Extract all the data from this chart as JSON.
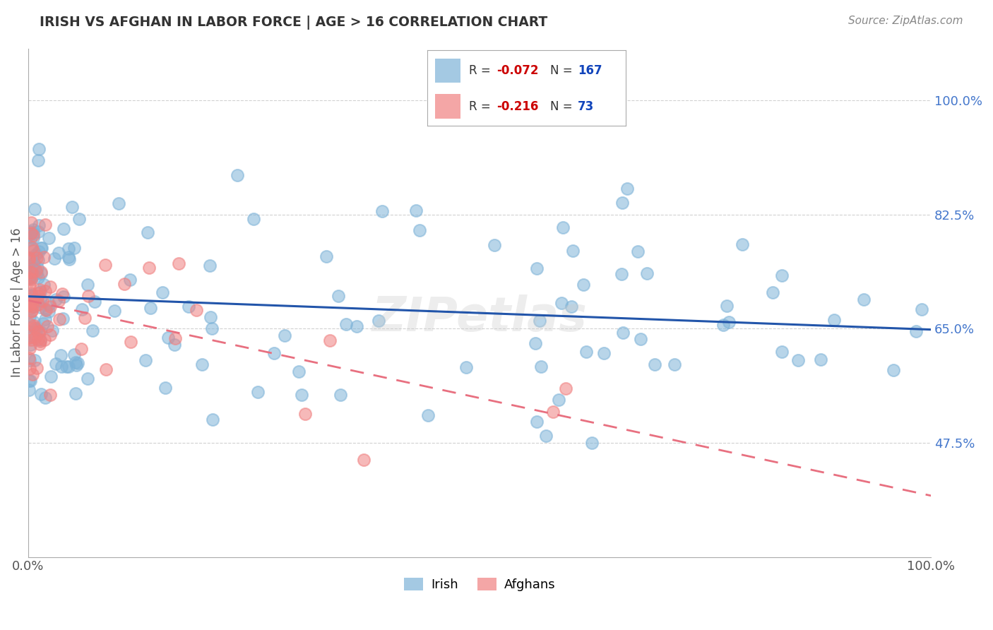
{
  "title": "IRISH VS AFGHAN IN LABOR FORCE | AGE > 16 CORRELATION CHART",
  "source": "Source: ZipAtlas.com",
  "ylabel": "In Labor Force | Age > 16",
  "xlim": [
    0.0,
    1.0
  ],
  "ylim": [
    0.3,
    1.08
  ],
  "ytick_vals": [
    0.475,
    0.65,
    0.825,
    1.0
  ],
  "ytick_labels": [
    "47.5%",
    "65.0%",
    "82.5%",
    "100.0%"
  ],
  "xtick_vals": [
    0.0,
    1.0
  ],
  "xtick_labels": [
    "0.0%",
    "100.0%"
  ],
  "irish_R": -0.072,
  "irish_N": 167,
  "afghan_R": -0.216,
  "afghan_N": 73,
  "irish_color": "#7EB3D8",
  "afghan_color": "#F08080",
  "irish_line_color": "#2255AA",
  "afghan_line_color": "#E87080",
  "background_color": "#FFFFFF",
  "grid_color": "#CCCCCC",
  "title_color": "#333333",
  "legend_r_color": "#CC0000",
  "legend_n_color": "#1144BB",
  "watermark": "ZIPetlas",
  "seed": 42
}
